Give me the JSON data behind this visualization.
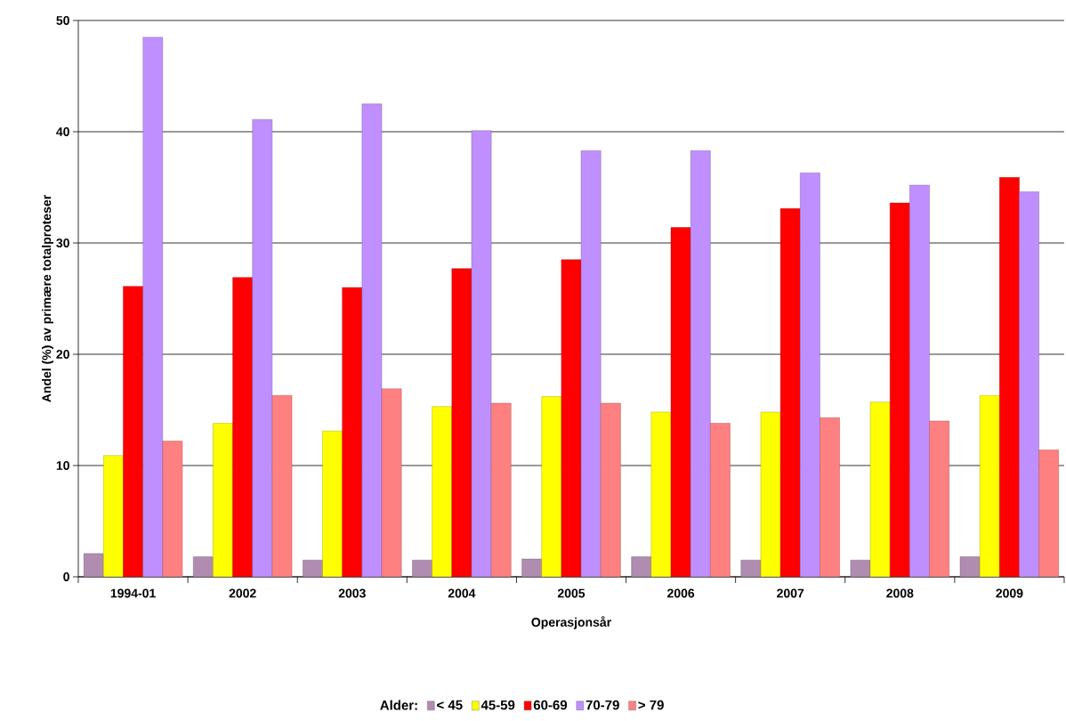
{
  "chart_data": {
    "type": "bar",
    "xlabel": "Operasjonsår",
    "ylabel": "Andel (%) av primære totalproteser",
    "legend_title": "Alder:",
    "categories": [
      "1994-01",
      "2002",
      "2003",
      "2004",
      "2005",
      "2006",
      "2007",
      "2008",
      "2009"
    ],
    "series": [
      {
        "name": "< 45",
        "color": "#b08cb0",
        "values": [
          2.1,
          1.8,
          1.5,
          1.5,
          1.6,
          1.8,
          1.5,
          1.5,
          1.8
        ]
      },
      {
        "name": "45-59",
        "color": "#ffff00",
        "values": [
          10.9,
          13.8,
          13.1,
          15.3,
          16.2,
          14.8,
          14.8,
          15.7,
          16.3
        ]
      },
      {
        "name": "60-69",
        "color": "#ff0000",
        "values": [
          26.1,
          26.9,
          26.0,
          27.7,
          28.5,
          31.4,
          33.1,
          33.6,
          35.9
        ]
      },
      {
        "name": "70-79",
        "color": "#bf8fff",
        "values": [
          48.5,
          41.1,
          42.5,
          40.1,
          38.3,
          38.3,
          36.3,
          35.2,
          34.6
        ]
      },
      {
        "name": "> 79",
        "color": "#ff8080",
        "values": [
          12.2,
          16.3,
          16.9,
          15.6,
          15.6,
          13.8,
          14.3,
          14.0,
          11.4
        ]
      }
    ],
    "ylim": [
      0,
      50
    ],
    "yticks": [
      0,
      10,
      20,
      30,
      40,
      50
    ],
    "grid": "y",
    "legend": "bottom"
  }
}
